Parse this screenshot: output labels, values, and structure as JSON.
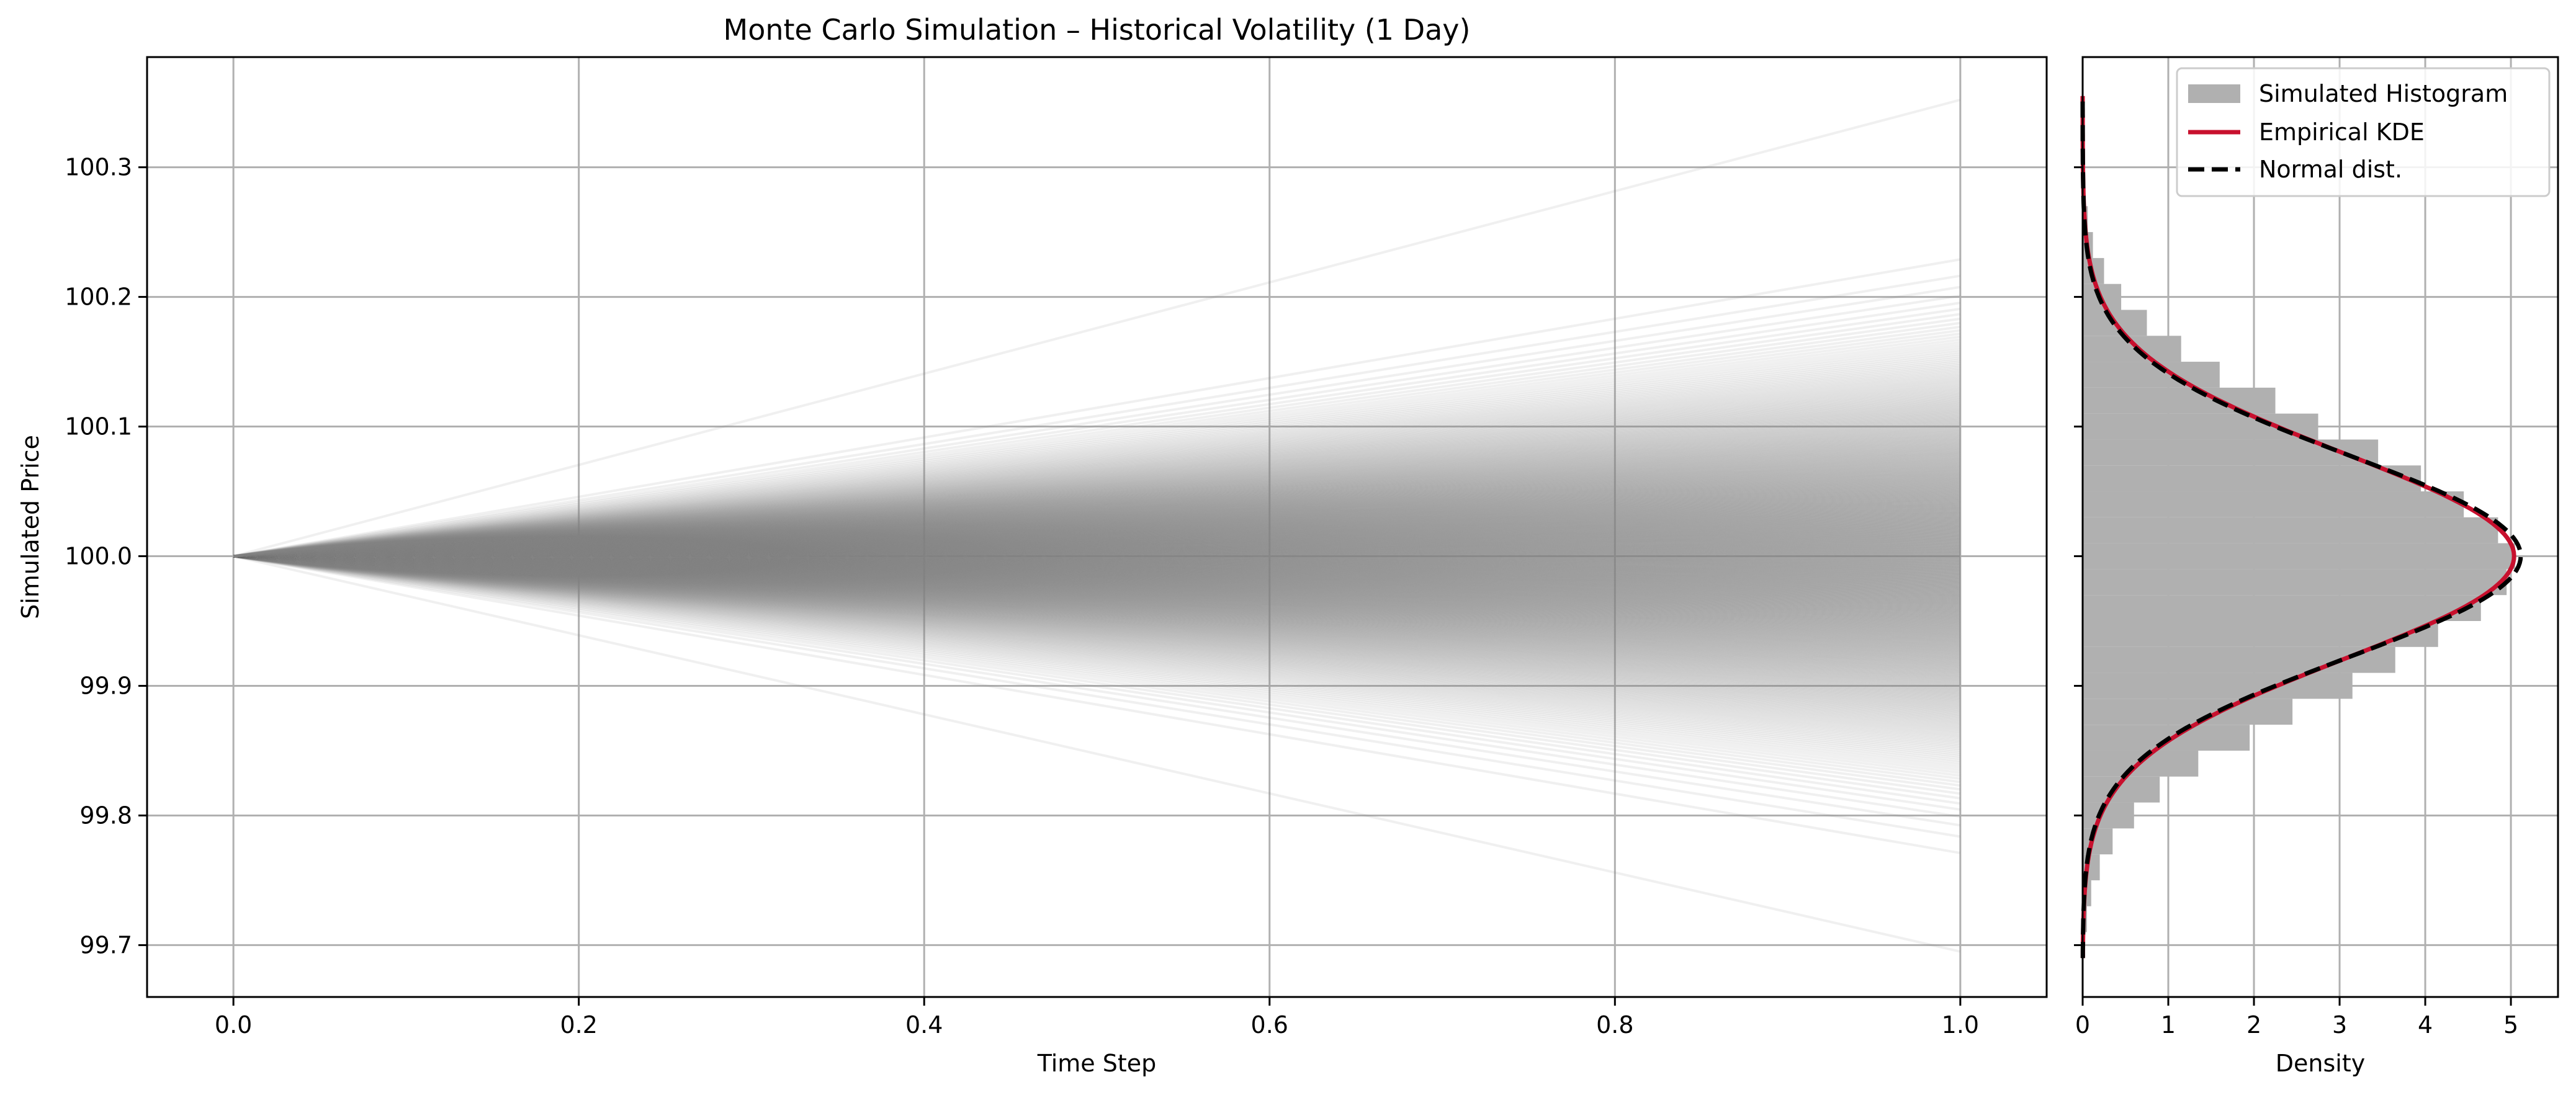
{
  "chart_data": [
    {
      "type": "line",
      "title": "Monte Carlo Simulation – Historical Volatility (1 Day)",
      "xlabel": "Time Step",
      "ylabel": "Simulated Price",
      "xlim": [
        -0.05,
        1.05
      ],
      "ylim": [
        99.66,
        100.385
      ],
      "xticks": [
        0.0,
        0.2,
        0.4,
        0.6,
        0.8,
        1.0
      ],
      "xtick_labels": [
        "0.0",
        "0.2",
        "0.4",
        "0.6",
        "0.8",
        "1.0"
      ],
      "yticks": [
        99.7,
        99.8,
        99.9,
        100.0,
        100.1,
        100.2,
        100.3
      ],
      "ytick_labels": [
        "99.7",
        "99.8",
        "99.9",
        "100.0",
        "100.1",
        "100.2",
        "100.3"
      ],
      "grid": true,
      "start": {
        "x": 0.0,
        "y": 100.0
      },
      "paths_end_at": 1.0,
      "path_end_range": [
        99.695,
        100.352
      ],
      "path_end_mean": 100.0,
      "path_end_std": 0.078,
      "series_color": "#808080"
    },
    {
      "type": "bar",
      "orientation": "horizontal",
      "xlabel": "Density",
      "xlim": [
        0,
        5.55
      ],
      "ylim": [
        99.66,
        100.385
      ],
      "xticks": [
        0,
        1,
        2,
        3,
        4,
        5
      ],
      "xtick_labels": [
        "0",
        "1",
        "2",
        "3",
        "4",
        "5"
      ],
      "grid": true,
      "legend_position": "top-right",
      "histogram": {
        "name": "Simulated Histogram",
        "color": "#b0b0b0",
        "bin_centers": [
          99.72,
          99.74,
          99.76,
          99.78,
          99.8,
          99.82,
          99.84,
          99.86,
          99.88,
          99.9,
          99.92,
          99.94,
          99.96,
          99.98,
          100.0,
          100.02,
          100.04,
          100.06,
          100.08,
          100.1,
          100.12,
          100.14,
          100.16,
          100.18,
          100.2,
          100.22,
          100.24,
          100.26,
          100.28
        ],
        "density": [
          0.05,
          0.1,
          0.2,
          0.35,
          0.6,
          0.9,
          1.35,
          1.95,
          2.45,
          3.15,
          3.65,
          4.15,
          4.65,
          4.95,
          5.05,
          4.85,
          4.45,
          3.95,
          3.45,
          2.75,
          2.25,
          1.6,
          1.15,
          0.75,
          0.45,
          0.25,
          0.12,
          0.06,
          0.03
        ]
      },
      "kde": {
        "name": "Empirical KDE",
        "color": "#c8102e",
        "mean": 100.0,
        "std": 0.0792,
        "peak_density": 5.04
      },
      "normal": {
        "name": "Normal dist.",
        "color": "#000000",
        "style": "dashed",
        "mean": 100.0,
        "std": 0.078,
        "peak_density": 5.11
      },
      "curve_y_range": [
        99.69,
        100.355
      ]
    }
  ]
}
